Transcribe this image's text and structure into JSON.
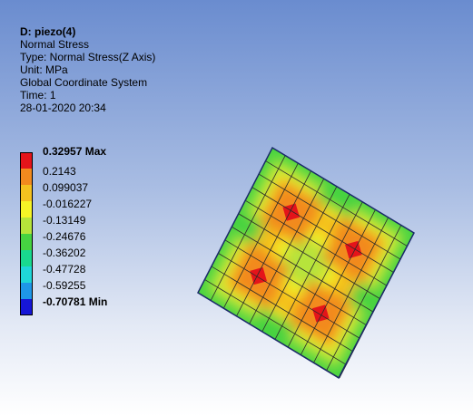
{
  "header": {
    "title": "D: piezo(4)",
    "result": "Normal Stress",
    "type": "Type: Normal Stress(Z Axis)",
    "unit": "Unit: MPa",
    "system": "Global Coordinate System",
    "time": "Time: 1",
    "date": "28-01-2020 20:34"
  },
  "legend": {
    "items": [
      {
        "label": "0.32957 Max",
        "color": "#e4141a",
        "bold": true
      },
      {
        "label": "0.2143",
        "color": "#f28a1e",
        "bold": false
      },
      {
        "label": "0.099037",
        "color": "#f4c11f",
        "bold": false
      },
      {
        "label": "-0.016227",
        "color": "#f6f426",
        "bold": false
      },
      {
        "label": "-0.13149",
        "color": "#b6e43a",
        "bold": false
      },
      {
        "label": "-0.24676",
        "color": "#46d341",
        "bold": false
      },
      {
        "label": "-0.36202",
        "color": "#19d98e",
        "bold": false
      },
      {
        "label": "-0.47728",
        "color": "#1fd6d8",
        "bold": false
      },
      {
        "label": "-0.59255",
        "color": "#1e97e8",
        "bold": false
      },
      {
        "label": "-0.70781 Min",
        "color": "#1616d6",
        "bold": true
      }
    ]
  }
}
